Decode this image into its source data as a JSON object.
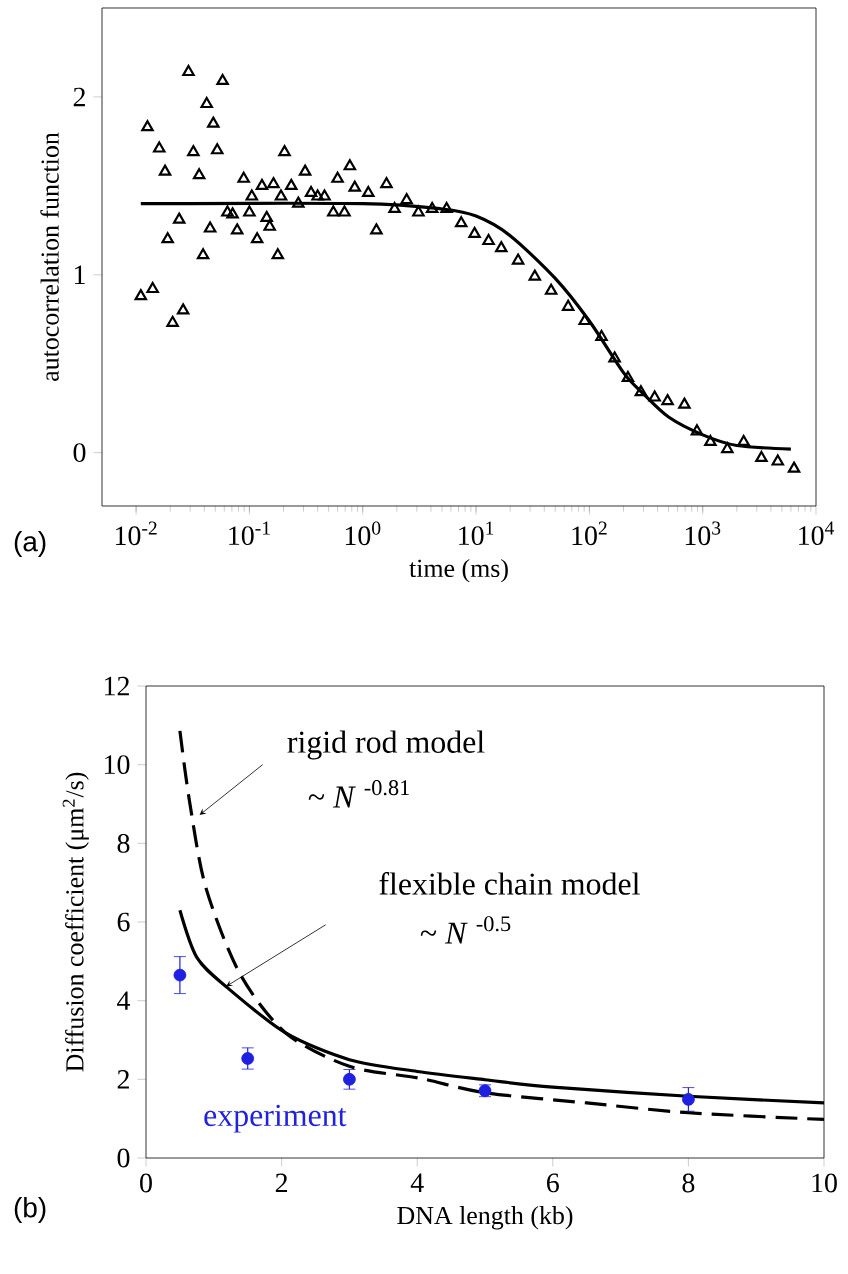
{
  "chart_data": [
    {
      "type": "scatter",
      "xlabel": "time (ms)",
      "ylabel": "autocorrelation function",
      "log": "x",
      "xlim": [
        0.005,
        10000
      ],
      "ylim": [
        -0.3,
        2.5
      ],
      "xticks": [
        {
          "value": 0.01,
          "label": "10$^{-2}$"
        },
        {
          "value": 0.1,
          "label": "10$^{-1}$"
        },
        {
          "value": 1,
          "label": "10$^{0}$"
        },
        {
          "value": 10,
          "label": "10$^{1}$"
        },
        {
          "value": 100,
          "label": "10$^{2}$"
        },
        {
          "value": 1000,
          "label": "10$^{3}$"
        },
        {
          "value": 10000,
          "label": "10$^{4}$"
        }
      ],
      "yticks": [
        0,
        1,
        2
      ],
      "annotations": [
        "(a)"
      ],
      "series": [
        {
          "marker": "triangle",
          "color": "#000000",
          "x": [
            0.011,
            0.014,
            0.0126,
            0.016,
            0.018,
            0.019,
            0.021,
            0.024,
            0.026,
            0.029,
            0.032,
            0.036,
            0.039,
            0.042,
            0.045,
            0.048,
            0.052,
            0.058,
            0.064,
            0.071,
            0.078,
            0.089,
            0.1,
            0.105,
            0.117,
            0.129,
            0.142,
            0.151,
            0.163,
            0.178,
            0.19,
            0.204,
            0.234,
            0.27,
            0.31,
            0.35,
            0.4,
            0.46,
            0.55,
            0.6,
            0.69,
            0.77,
            0.85,
            1.12,
            1.32,
            1.62,
            1.91,
            2.44,
            3.1,
            4.1,
            5.5,
            7.4,
            9.7,
            12.9,
            16.7,
            23.5,
            33,
            46,
            65,
            91,
            128,
            167,
            219,
            285,
            377,
            490,
            690,
            890,
            1170,
            1650,
            2300,
            3300,
            4600,
            6400
          ],
          "values": [
            0.88,
            0.92,
            1.83,
            1.71,
            1.58,
            1.2,
            0.73,
            1.31,
            0.8,
            2.14,
            1.69,
            1.56,
            1.11,
            1.96,
            1.26,
            1.85,
            1.7,
            2.09,
            1.35,
            1.34,
            1.25,
            1.54,
            1.35,
            1.44,
            1.2,
            1.5,
            1.32,
            1.27,
            1.51,
            1.11,
            1.44,
            1.69,
            1.5,
            1.4,
            1.58,
            1.46,
            1.44,
            1.44,
            1.35,
            1.54,
            1.35,
            1.61,
            1.49,
            1.46,
            1.25,
            1.51,
            1.37,
            1.42,
            1.35,
            1.37,
            1.37,
            1.29,
            1.23,
            1.19,
            1.15,
            1.08,
            0.99,
            0.91,
            0.82,
            0.74,
            0.65,
            0.53,
            0.42,
            0.34,
            0.31,
            0.29,
            0.27,
            0.12,
            0.06,
            0.02,
            0.06,
            -0.03,
            -0.05,
            -0.09
          ]
        },
        {
          "type": "line",
          "marker": "none",
          "color": "#000000",
          "x": [
            0.011,
            1,
            5,
            10,
            20,
            50,
            100,
            200,
            300,
            500,
            1000,
            2000,
            6000
          ],
          "values": [
            1.4,
            1.4,
            1.37,
            1.33,
            1.22,
            0.98,
            0.74,
            0.45,
            0.33,
            0.2,
            0.1,
            0.04,
            0.02
          ]
        }
      ]
    },
    {
      "type": "line",
      "xlabel": "DNA length (kb)",
      "ylabel": "Diffusion coefficient (μm$^{2}$/s)",
      "xlim": [
        0,
        10
      ],
      "ylim": [
        0,
        12
      ],
      "xticks": [
        0,
        2,
        4,
        6,
        8,
        10
      ],
      "yticks": [
        0,
        2,
        4,
        6,
        8,
        10,
        12
      ],
      "annotations": [
        "~ *N* $^{-0.81}$",
        "~ *N* $^{-0.5}$",
        "(b)",
        "rigid rod model",
        "flexible chain model"
      ],
      "series": [
        {
          "name": "experiment",
          "type": "scatter",
          "marker": "circle",
          "color": "#2020e0",
          "x": [
            0.5,
            1.5,
            3,
            5,
            8
          ],
          "values": [
            4.65,
            2.53,
            2.0,
            1.71,
            1.49
          ],
          "errors": [
            0.47,
            0.27,
            0.25,
            0.15,
            0.3
          ]
        },
        {
          "marker": "none",
          "line_style": "dashed",
          "color": "#000000",
          "x": [
            0.5,
            0.64,
            0.88,
            1.38,
            2.06,
            3,
            4.03,
            5,
            6.5,
            8,
            10
          ],
          "values": [
            10.86,
            9.09,
            6.89,
            4.7,
            3.18,
            2.33,
            2.03,
            1.66,
            1.4,
            1.15,
            0.98
          ]
        },
        {
          "marker": "none",
          "line_style": "solid",
          "color": "#000000",
          "x": [
            0.5,
            0.75,
            1.18,
            2.06,
            3,
            4,
            5,
            6,
            8,
            10
          ],
          "values": [
            6.3,
            5.1,
            4.36,
            3.18,
            2.5,
            2.2,
            1.99,
            1.8,
            1.57,
            1.4
          ]
        }
      ]
    }
  ]
}
